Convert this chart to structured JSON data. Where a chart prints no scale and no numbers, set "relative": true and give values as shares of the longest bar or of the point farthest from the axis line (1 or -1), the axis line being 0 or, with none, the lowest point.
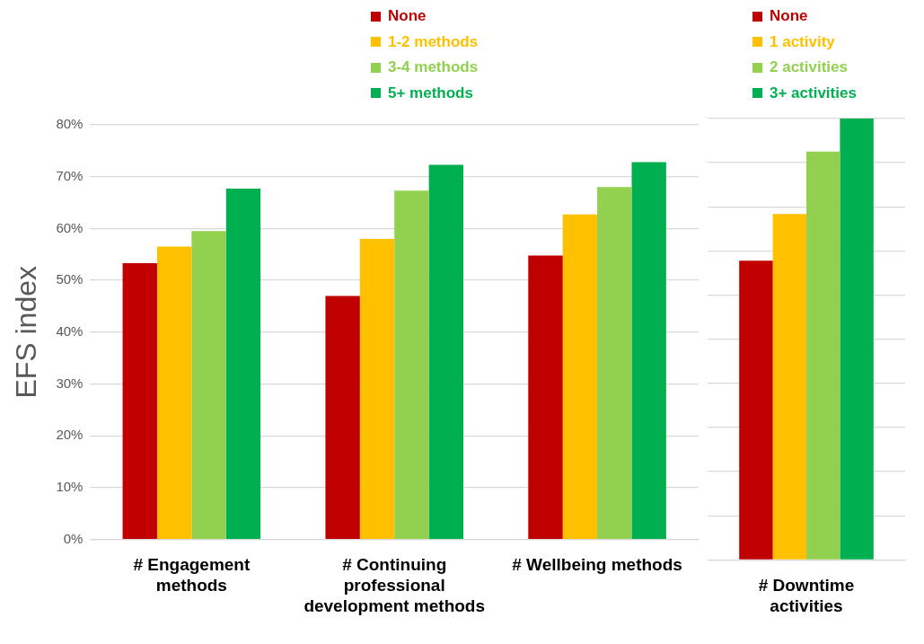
{
  "chart_data": [
    {
      "type": "bar",
      "ylabel": "EFS index",
      "categories": [
        "# Engagement methods",
        "# Continuing professional development methods",
        "# Wellbeing methods"
      ],
      "series": [
        {
          "name": "None",
          "color": "#c00000",
          "values": [
            53.3,
            47.0,
            54.8
          ]
        },
        {
          "name": "1-2 methods",
          "color": "#ffc000",
          "values": [
            56.5,
            58.0,
            62.7
          ]
        },
        {
          "name": "3-4 methods",
          "color": "#92d050",
          "values": [
            59.5,
            67.3,
            68.0
          ]
        },
        {
          "name": "5+ methods",
          "color": "#00b050",
          "values": [
            67.7,
            72.3,
            72.8
          ]
        }
      ],
      "ylim": [
        0,
        80
      ],
      "yticks": [
        {
          "value": 0,
          "label": "0%"
        },
        {
          "value": 10,
          "label": "10%"
        },
        {
          "value": 20,
          "label": "20%"
        },
        {
          "value": 30,
          "label": "30%"
        },
        {
          "value": 40,
          "label": "40%"
        },
        {
          "value": 50,
          "label": "50%"
        },
        {
          "value": 60,
          "label": "60%"
        },
        {
          "value": 70,
          "label": "70%"
        },
        {
          "value": 80,
          "label": "80%"
        }
      ],
      "grid": "y",
      "legend": "top"
    },
    {
      "type": "bar",
      "relative": true,
      "categories": [
        "# Downtime activities"
      ],
      "series": [
        {
          "name": "None",
          "color": "#c00000",
          "values": [
            0.678
          ]
        },
        {
          "name": "1 activity",
          "color": "#ffc000",
          "values": [
            0.784
          ]
        },
        {
          "name": "2 activities",
          "color": "#92d050",
          "values": [
            0.925
          ]
        },
        {
          "name": "3+ activities",
          "color": "#00b050",
          "values": [
            1
          ]
        }
      ],
      "grid": "y",
      "legend": "top"
    }
  ]
}
